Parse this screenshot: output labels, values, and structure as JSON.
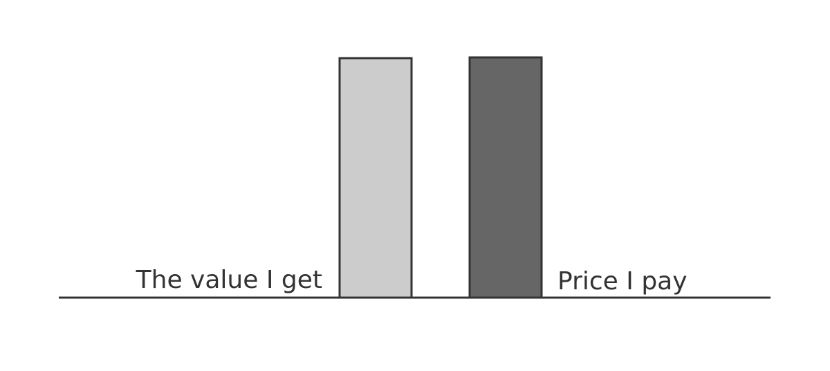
{
  "chart_data": {
    "type": "bar",
    "categories": [
      "The value I get",
      "Price I pay"
    ],
    "values": [
      100,
      100.3
    ],
    "ylim": [
      0,
      100
    ],
    "grid": false,
    "legend": "none",
    "bar_colors": [
      "#cccccc",
      "#666666"
    ],
    "stroke_color": "#333333",
    "axis_color": "#333333"
  }
}
